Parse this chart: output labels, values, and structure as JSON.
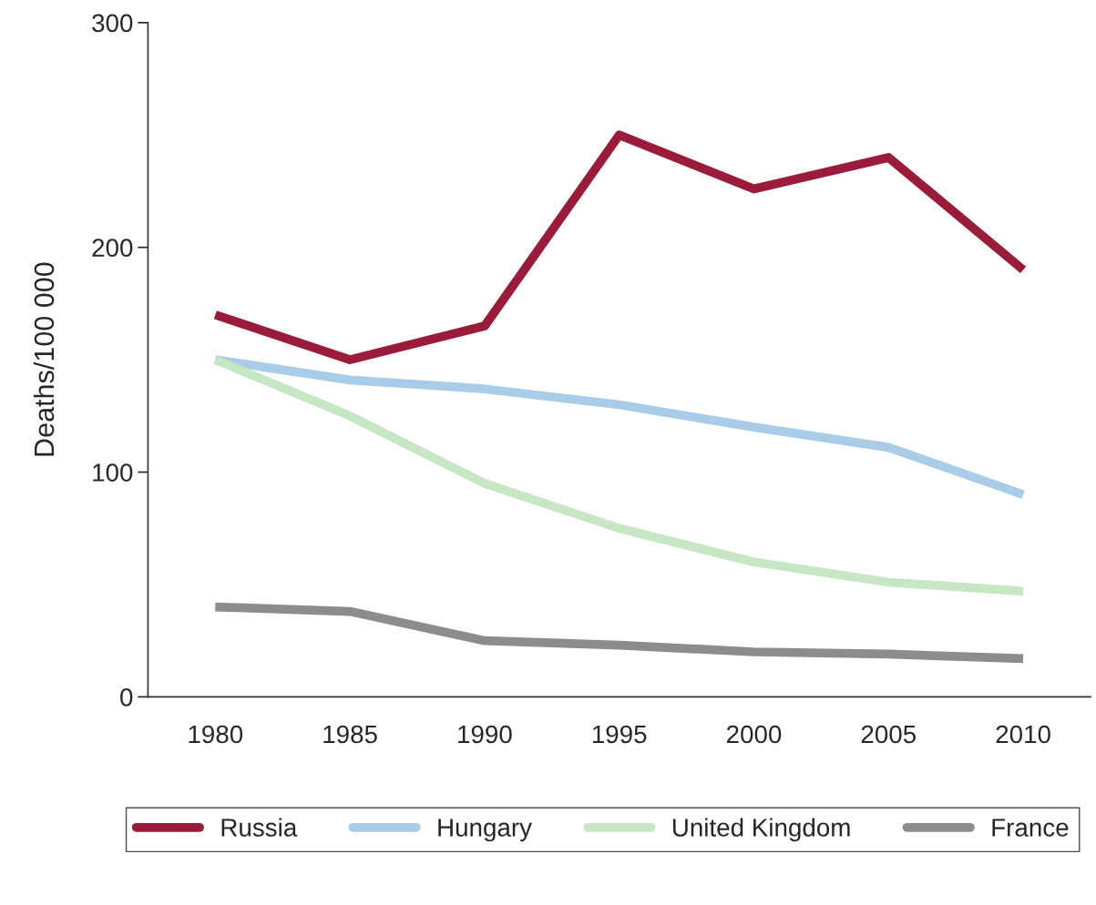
{
  "chart_data": {
    "type": "line",
    "ylabel": "Deaths/100 000",
    "categories": [
      "1980",
      "1985",
      "1990",
      "1995",
      "2000",
      "2005",
      "2010"
    ],
    "ylim": [
      0,
      300
    ],
    "yticks": [
      0,
      100,
      200,
      300
    ],
    "grid": false,
    "legend": "bottom",
    "marker": "none",
    "line_style": "solid",
    "series": [
      {
        "name": "Russia",
        "color": "#9b1b3a",
        "values": [
          170,
          150,
          165,
          250,
          226,
          240,
          190
        ]
      },
      {
        "name": "Hungary",
        "color": "#a9cce8",
        "values": [
          150,
          141,
          137,
          130,
          120,
          111,
          90
        ]
      },
      {
        "name": "United Kingdom",
        "color": "#c6e6c4",
        "values": [
          150,
          125,
          95,
          75,
          60,
          51,
          47
        ]
      },
      {
        "name": "France",
        "color": "#8c8c8c",
        "values": [
          40,
          38,
          25,
          23,
          20,
          19,
          17
        ]
      }
    ]
  }
}
